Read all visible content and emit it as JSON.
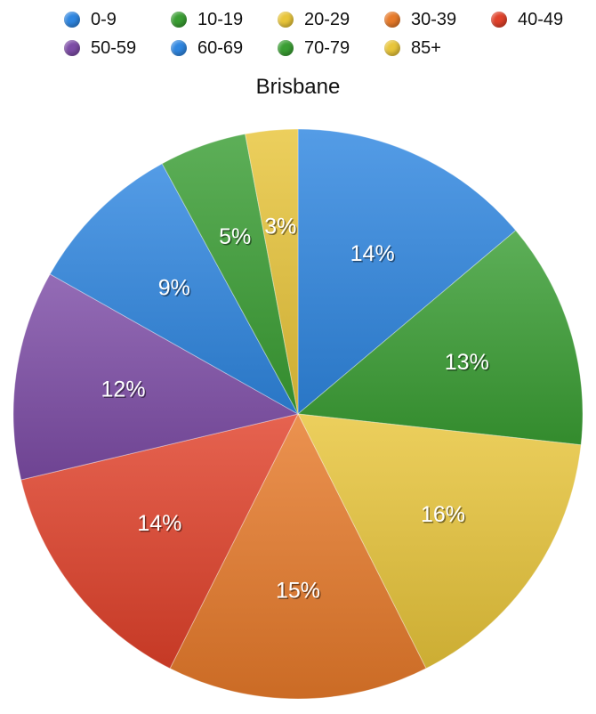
{
  "chart_data": {
    "type": "pie",
    "title": "Brisbane",
    "legend_position": "top",
    "slices": [
      {
        "label": "0-9",
        "value": 14,
        "display": "14%",
        "color": "#2f86e0"
      },
      {
        "label": "10-19",
        "value": 13,
        "display": "13%",
        "color": "#3a9e33"
      },
      {
        "label": "20-29",
        "value": 16,
        "display": "16%",
        "color": "#e8c53a"
      },
      {
        "label": "30-39",
        "value": 15,
        "display": "15%",
        "color": "#e77a2a"
      },
      {
        "label": "40-49",
        "value": 14,
        "display": "14%",
        "color": "#e0412a"
      },
      {
        "label": "50-59",
        "value": 12,
        "display": "12%",
        "color": "#7d4ca6"
      },
      {
        "label": "60-69",
        "value": 9,
        "display": "9%",
        "color": "#2f86e0"
      },
      {
        "label": "70-79",
        "value": 5,
        "display": "5%",
        "color": "#3a9e33"
      },
      {
        "label": "85+",
        "value": 3,
        "display": "3%",
        "color": "#e8c53a"
      }
    ]
  }
}
